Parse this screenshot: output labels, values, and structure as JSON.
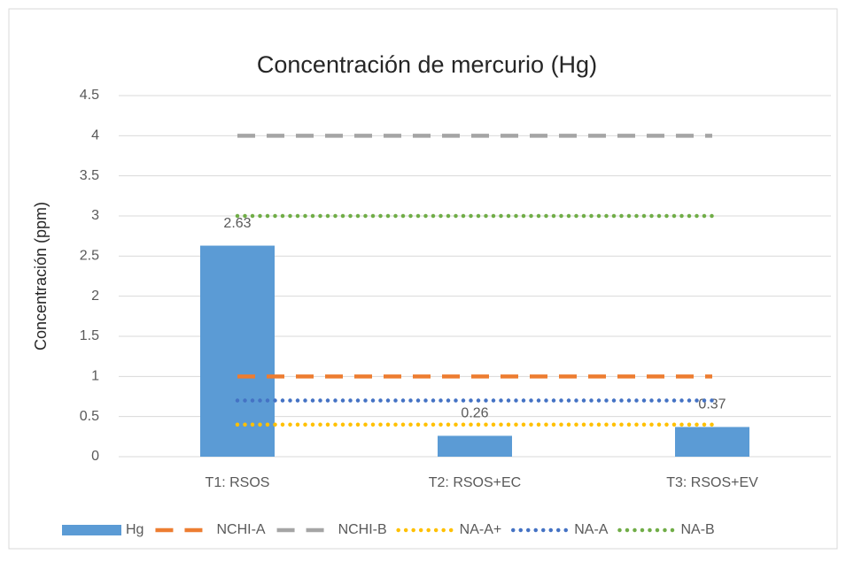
{
  "chart_data": {
    "type": "bar",
    "title": "Concentración de mercurio (Hg)",
    "y_label": "Concentración (ppm)",
    "categories": [
      "T1: RSOS",
      "T2: RSOS+EC",
      "T3: RSOS+EV"
    ],
    "series": [
      {
        "name": "Hg",
        "type": "bar",
        "color": "#5b9bd5",
        "values": [
          2.63,
          0.26,
          0.37
        ],
        "data_labels": true
      },
      {
        "name": "NCHI-A",
        "type": "line",
        "dash": "dashed",
        "color": "#ed7d31",
        "values": [
          1,
          1,
          1
        ]
      },
      {
        "name": "NCHI-B",
        "type": "line",
        "dash": "dashed",
        "color": "#a5a5a5",
        "values": [
          4,
          4,
          4
        ]
      },
      {
        "name": "NA-A+",
        "type": "line",
        "dash": "dotted",
        "color": "#ffc000",
        "values": [
          0.4,
          0.4,
          0.4
        ]
      },
      {
        "name": "NA-A",
        "type": "line",
        "dash": "dotted",
        "color": "#4472c4",
        "values": [
          0.7,
          0.7,
          0.7
        ]
      },
      {
        "name": "NA-B",
        "type": "line",
        "dash": "dotted",
        "color": "#70ad47",
        "values": [
          3,
          3,
          3
        ]
      }
    ],
    "ylim": [
      0,
      4.5
    ],
    "yticks": [
      0,
      0.5,
      1,
      1.5,
      2,
      2.5,
      3,
      3.5,
      4,
      4.5
    ],
    "grid": true,
    "legend": "bottom"
  }
}
